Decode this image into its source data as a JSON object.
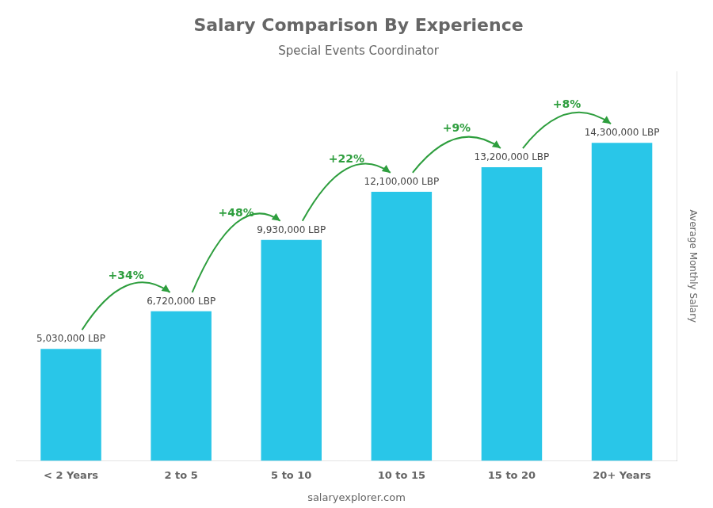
{
  "chart_data": {
    "type": "bar",
    "title": "Salary Comparison By Experience",
    "subtitle": "Special Events Coordinator",
    "ylabel": "Average Monthly Salary",
    "footer": "salaryexplorer.com",
    "categories": [
      "< 2 Years",
      "2 to 5",
      "5 to 10",
      "10 to 15",
      "15 to 20",
      "20+ Years"
    ],
    "values": [
      5030000,
      6720000,
      9930000,
      12100000,
      13200000,
      14300000
    ],
    "value_labels": [
      "5,030,000 LBP",
      "6,720,000 LBP",
      "9,930,000 LBP",
      "12,100,000 LBP",
      "13,200,000 LBP",
      "14,300,000 LBP"
    ],
    "data_labels": true,
    "annotations": [
      "+34%",
      "+48%",
      "+22%",
      "+9%",
      "+8%"
    ],
    "color": "#29c6e8",
    "ylim": [
      0,
      17500000
    ],
    "grid": false,
    "tick_labels": "x"
  }
}
